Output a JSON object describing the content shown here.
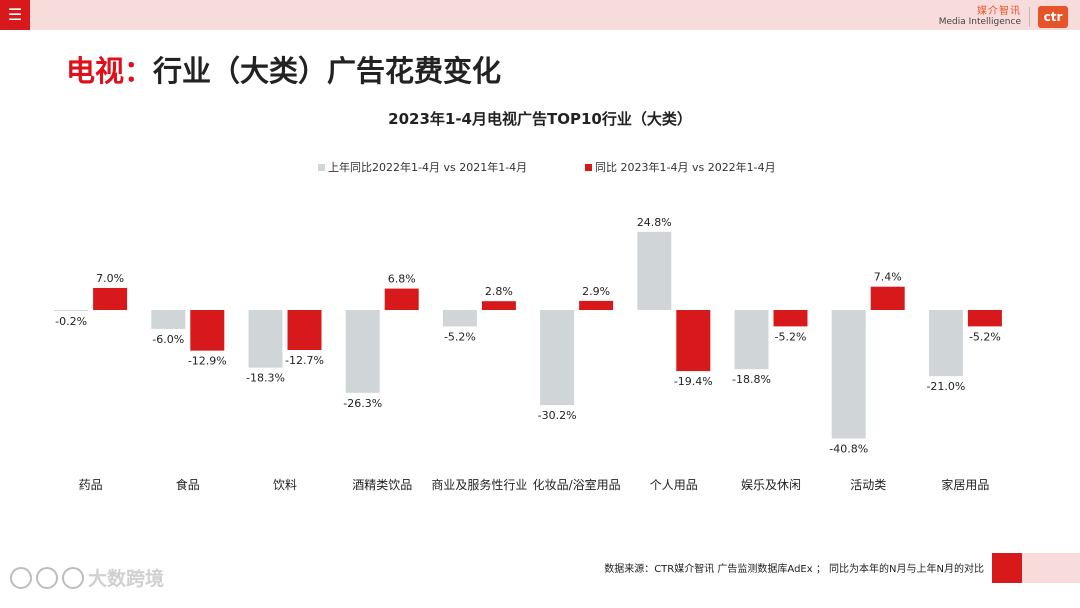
{
  "header": {
    "menu_icon": "☰",
    "brand_cn": "媒介智讯",
    "brand_en": "Media Intelligence",
    "brand_logo": "ctr"
  },
  "page": {
    "title_prefix": "电视：",
    "title_rest": "行业（大类）广告花费变化"
  },
  "footer": {
    "source": "数据来源：CTR媒介智讯 广告监测数据库AdEx ； 同比为本年的N月与上年N月的对比",
    "watermark": "大数跨境"
  },
  "colors": {
    "series_prev": "#d0d5d8",
    "series_curr": "#d7191c",
    "accent": "#e0101a"
  },
  "chart_data": {
    "type": "bar",
    "title": "2023年1-4月电视广告TOP10行业（大类）",
    "categories": [
      "药品",
      "食品",
      "饮料",
      "酒精类饮品",
      "商业及服务性行业",
      "化妆品/浴室用品",
      "个人用品",
      "娱乐及休闲",
      "活动类",
      "家居用品"
    ],
    "series": [
      {
        "name": "上年同比2022年1-4月  vs  2021年1-4月",
        "values": [
          -0.2,
          -6.0,
          -18.3,
          -26.3,
          -5.2,
          -30.2,
          24.8,
          -18.8,
          -40.8,
          -21.0
        ],
        "labels": [
          "-0.2%",
          "-6.0%",
          "-18.3%",
          "-26.3%",
          "-5.2%",
          "-30.2%",
          "24.8%",
          "-18.8%",
          "-40.8%",
          "-21.0%"
        ]
      },
      {
        "name": "同比 2023年1-4月  vs  2022年1-4月",
        "values": [
          7.0,
          -12.9,
          -12.7,
          6.8,
          2.8,
          2.9,
          -19.4,
          -5.2,
          7.4,
          -5.2
        ],
        "labels": [
          "7.0%",
          "-12.9%",
          "-12.7%",
          "6.8%",
          "2.8%",
          "2.9%",
          "-19.4%",
          "-5.2%",
          "7.4%",
          "-5.2%"
        ]
      }
    ],
    "unit": "%",
    "legend_position": "top-center",
    "grid": false
  }
}
